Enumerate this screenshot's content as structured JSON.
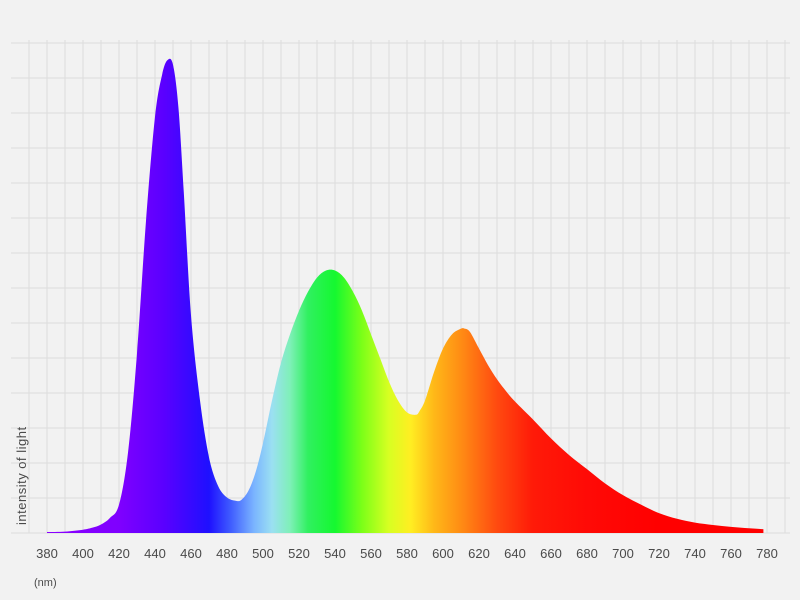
{
  "chart_data": {
    "type": "area",
    "title": "",
    "xlabel": "(nm)",
    "ylabel": "intensity of light",
    "xlim": [
      370,
      790
    ],
    "ylim": [
      0,
      1.0
    ],
    "grid": true,
    "x_ticks": [
      380,
      400,
      420,
      440,
      460,
      480,
      500,
      520,
      540,
      560,
      580,
      600,
      620,
      640,
      660,
      680,
      700,
      720,
      740,
      760,
      780
    ],
    "x_tick_labels": [
      "380",
      "400",
      "420",
      "440",
      "460",
      "480",
      "500",
      "520",
      "540",
      "560",
      "580",
      "600",
      "620",
      "640",
      "660",
      "680",
      "700",
      "720",
      "740",
      "760",
      "780"
    ],
    "series": [
      {
        "x": [
          380,
          390,
          400,
          405,
          410,
          415,
          420,
          425,
          430,
          435,
          440,
          444,
          447,
          450,
          453,
          456,
          460,
          465,
          470,
          475,
          480,
          485,
          488,
          492,
          496,
          500,
          505,
          510,
          515,
          520,
          525,
          530,
          535,
          540,
          545,
          550,
          555,
          560,
          565,
          570,
          575,
          580,
          585,
          587,
          590,
          595,
          600,
          605,
          610,
          612,
          615,
          620,
          625,
          630,
          635,
          640,
          650,
          660,
          670,
          680,
          690,
          700,
          710,
          720,
          730,
          740,
          750,
          760,
          770,
          778
        ],
        "y": [
          0.002,
          0.003,
          0.007,
          0.011,
          0.018,
          0.032,
          0.06,
          0.17,
          0.38,
          0.66,
          0.88,
          0.97,
          1.0,
          0.99,
          0.9,
          0.72,
          0.46,
          0.28,
          0.16,
          0.1,
          0.075,
          0.068,
          0.07,
          0.09,
          0.13,
          0.19,
          0.28,
          0.36,
          0.42,
          0.47,
          0.51,
          0.54,
          0.555,
          0.555,
          0.54,
          0.51,
          0.47,
          0.42,
          0.37,
          0.32,
          0.28,
          0.255,
          0.25,
          0.258,
          0.28,
          0.34,
          0.39,
          0.42,
          0.432,
          0.432,
          0.425,
          0.39,
          0.355,
          0.325,
          0.3,
          0.278,
          0.24,
          0.2,
          0.165,
          0.135,
          0.105,
          0.08,
          0.06,
          0.042,
          0.03,
          0.022,
          0.017,
          0.013,
          0.01,
          0.008
        ]
      }
    ],
    "colors": {
      "background": "#f2f2f2",
      "grid": "#dcdcdc",
      "text": "#4a4a4a",
      "spectrum_stops": [
        {
          "nm": 380,
          "color": "#8a00ff"
        },
        {
          "nm": 420,
          "color": "#7f00ff"
        },
        {
          "nm": 445,
          "color": "#5a00ff"
        },
        {
          "nm": 470,
          "color": "#1e10ff"
        },
        {
          "nm": 482,
          "color": "#3f5cff"
        },
        {
          "nm": 495,
          "color": "#7ab4ff"
        },
        {
          "nm": 505,
          "color": "#9be0f2"
        },
        {
          "nm": 515,
          "color": "#7ff0b8"
        },
        {
          "nm": 525,
          "color": "#30f060"
        },
        {
          "nm": 540,
          "color": "#15f830"
        },
        {
          "nm": 555,
          "color": "#7cff18"
        },
        {
          "nm": 570,
          "color": "#d8ff22"
        },
        {
          "nm": 582,
          "color": "#ffee22"
        },
        {
          "nm": 595,
          "color": "#ffb818"
        },
        {
          "nm": 610,
          "color": "#ff8c14"
        },
        {
          "nm": 630,
          "color": "#ff4a10"
        },
        {
          "nm": 650,
          "color": "#ff1a08"
        },
        {
          "nm": 680,
          "color": "#ff0a06"
        },
        {
          "nm": 720,
          "color": "#ff0000"
        },
        {
          "nm": 780,
          "color": "#ff0000"
        }
      ]
    }
  }
}
